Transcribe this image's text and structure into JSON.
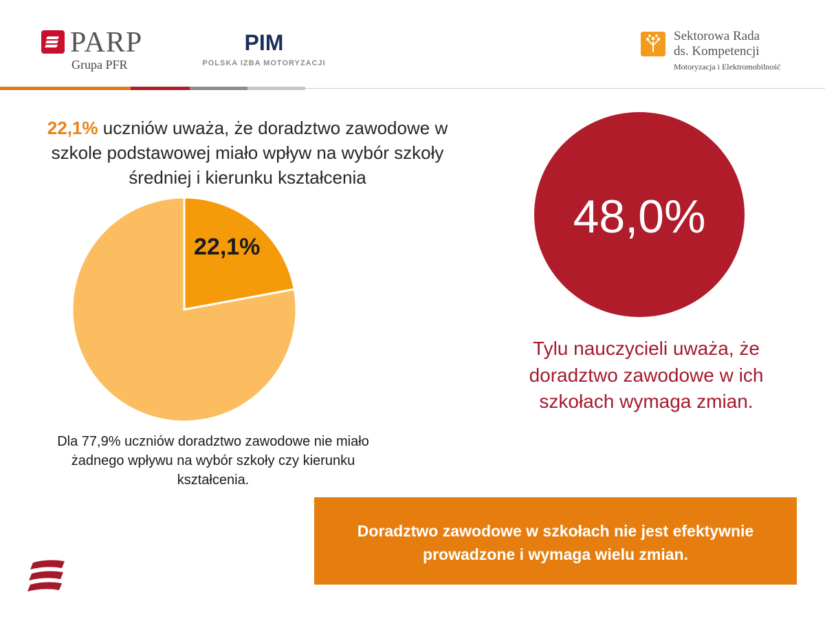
{
  "header": {
    "parp_name": "PARP",
    "parp_sub": "Grupa PFR",
    "pim_name": "PIM",
    "pim_sub": "POLSKA IZBA MOTORYZACJI",
    "src_line1": "Sektorowa Rada",
    "src_line2": "ds. Kompetencji",
    "src_line3": "Motoryzacja i Elektromobilność"
  },
  "colors": {
    "orange": "#e67e0f",
    "pie_highlight": "#f59a09",
    "pie_rest": "#fbbd60",
    "red": "#b11c2b",
    "stripe": [
      "#e4761b",
      "#b11c2b",
      "#8c8c8c",
      "#c8c8c8"
    ]
  },
  "headline": {
    "highlight": "22,1%",
    "rest": " uczniów uważa, że doradztwo zawodowe w szkole podstawowej miało wpływ na wybór szkoły średniej i kierunku kształcenia"
  },
  "chart_data": {
    "type": "pie",
    "categories": [
      "",
      ""
    ],
    "values": [
      22.1,
      77.9
    ],
    "data_labels": [
      "22,1%",
      ""
    ],
    "title": "",
    "legend": "none"
  },
  "pie_note": "Dla 77,9% uczniów doradztwo zawodowe nie miało żadnego wpływu na wybór szkoły czy kierunku kształcenia.",
  "circle": {
    "value": "48,0%",
    "caption": "Tylu nauczycieli uważa, że doradztwo zawodowe w ich szkołach wymaga zmian."
  },
  "banner": {
    "text": "Doradztwo zawodowe w szkołach nie jest efektywnie prowadzone i wymaga wielu zmian."
  }
}
